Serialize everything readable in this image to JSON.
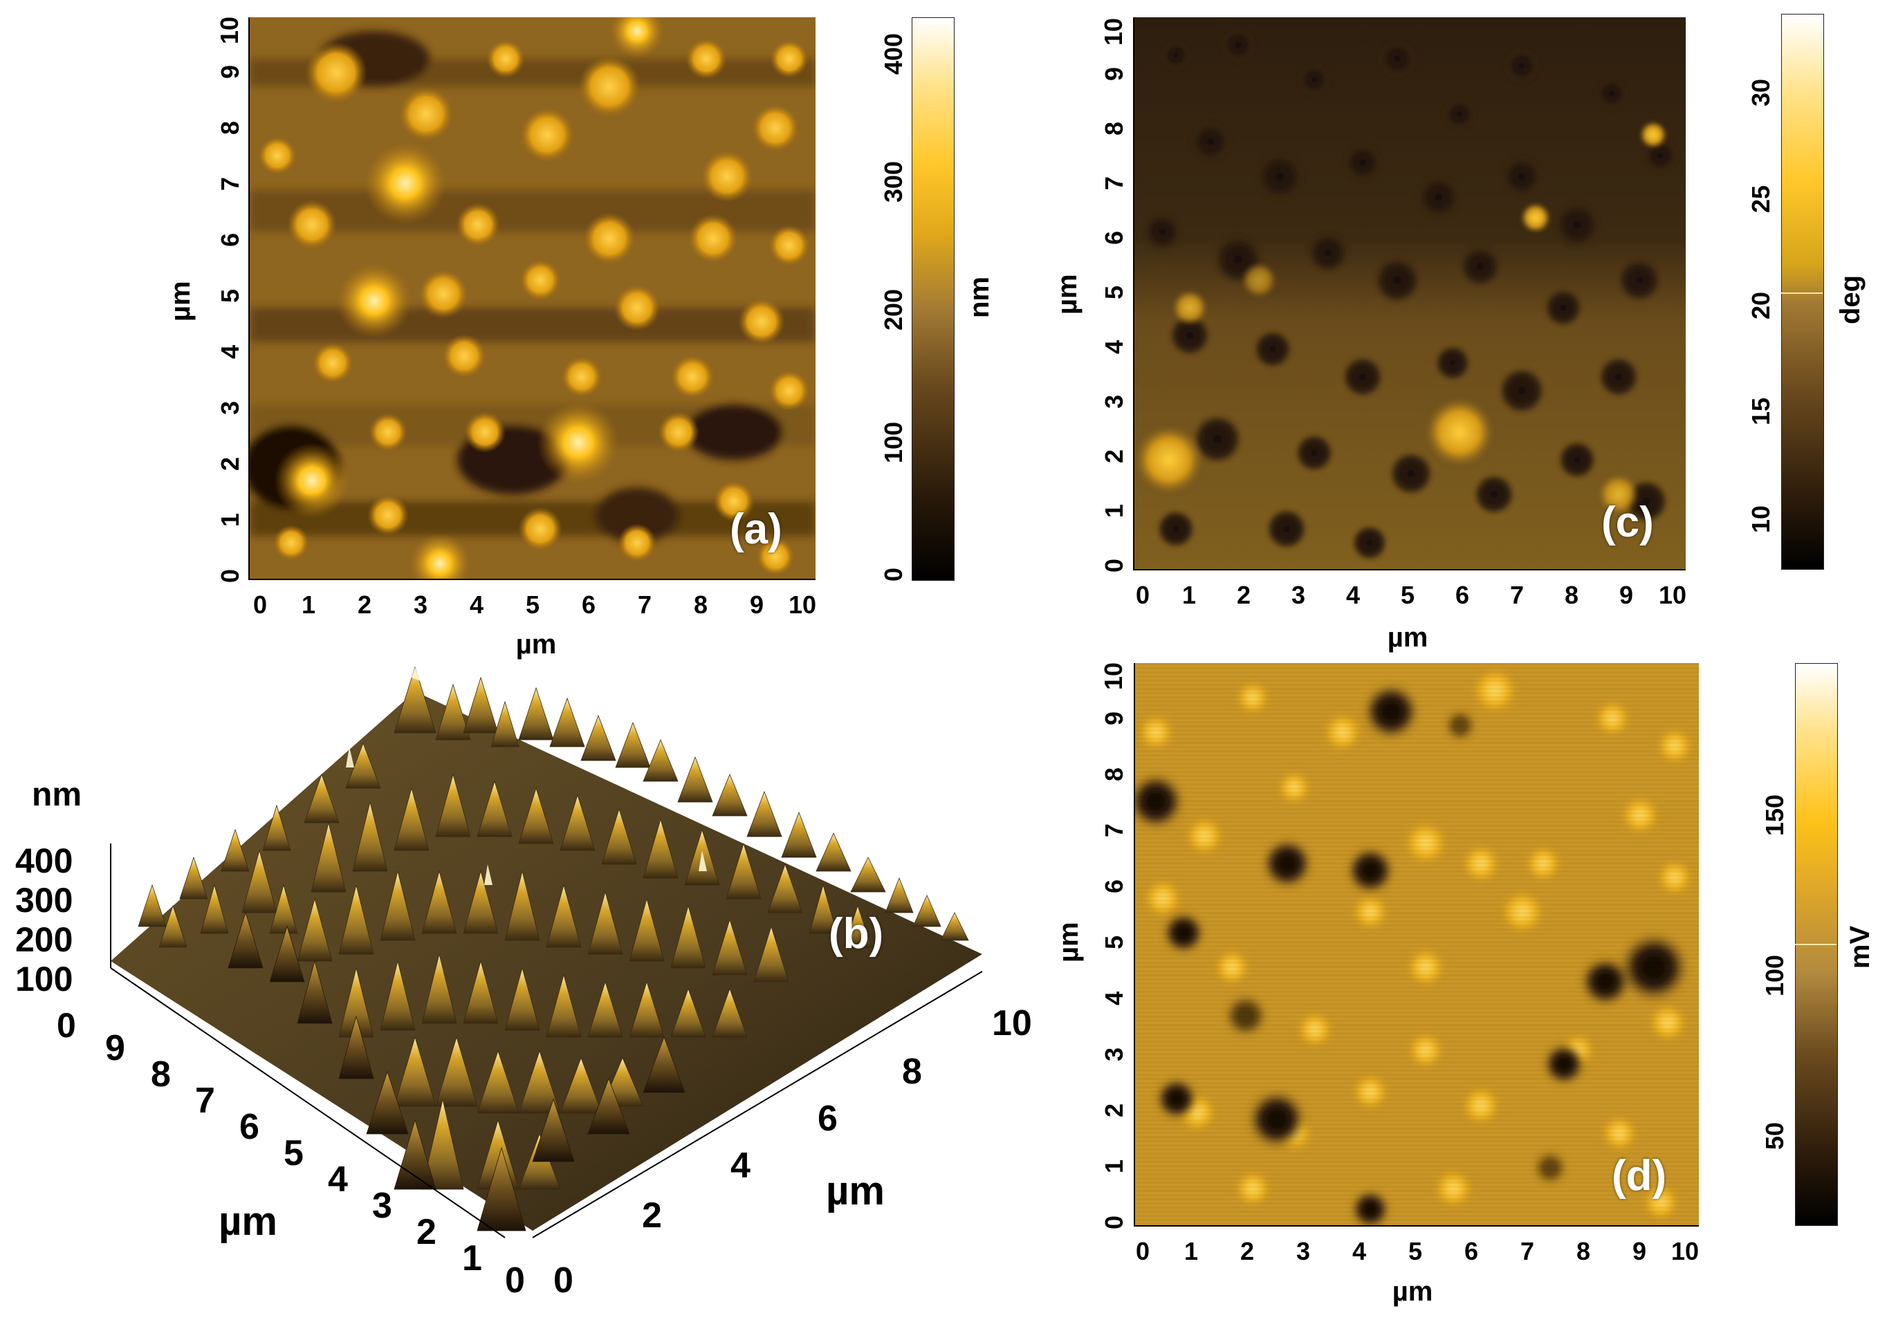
{
  "panel_a": {
    "tag": "(a)",
    "x_label": "µm",
    "y_label": "µm",
    "x_ticks": [
      "0",
      "1",
      "2",
      "3",
      "4",
      "5",
      "6",
      "7",
      "8",
      "9",
      "10"
    ],
    "y_ticks": [
      "0",
      "1",
      "2",
      "3",
      "4",
      "5",
      "6",
      "7",
      "8",
      "9",
      "10"
    ],
    "colorbar": {
      "unit": "nm",
      "ticks": [
        "0",
        "100",
        "200",
        "300",
        "400"
      ],
      "min": 0,
      "max": 420
    }
  },
  "panel_b": {
    "tag": "(b)",
    "z_unit": "nm",
    "z_ticks": [
      "400",
      "300",
      "200",
      "100",
      "0"
    ],
    "left_ticks": [
      "9",
      "8",
      "7",
      "6",
      "5",
      "4",
      "3",
      "2",
      "1",
      "0"
    ],
    "right_ticks": [
      "0",
      "2",
      "4",
      "6",
      "8",
      "10"
    ],
    "left_axis_label": "µm",
    "right_axis_label": "µm"
  },
  "panel_c": {
    "tag": "(c)",
    "x_label": "µm",
    "y_label": "µm",
    "x_ticks": [
      "0",
      "1",
      "2",
      "3",
      "4",
      "5",
      "6",
      "7",
      "8",
      "9",
      "10"
    ],
    "y_ticks": [
      "0",
      "1",
      "2",
      "3",
      "4",
      "5",
      "6",
      "7",
      "8",
      "9",
      "10"
    ],
    "colorbar": {
      "unit": "deg",
      "ticks": [
        "10",
        "15",
        "20",
        "25",
        "30"
      ],
      "min": 7.5,
      "max": 33.5
    }
  },
  "panel_d": {
    "tag": "(d)",
    "x_label": "µm",
    "y_label": "µm",
    "x_ticks": [
      "0",
      "1",
      "2",
      "3",
      "4",
      "5",
      "6",
      "7",
      "8",
      "9",
      "10"
    ],
    "y_ticks": [
      "0",
      "1",
      "2",
      "3",
      "4",
      "5",
      "6",
      "7",
      "8",
      "9",
      "10"
    ],
    "colorbar": {
      "unit": "mV",
      "ticks": [
        "50",
        "100",
        "150"
      ],
      "min": 22,
      "max": 197
    }
  },
  "colors": {
    "dark": "#1a0e06",
    "mid": "#8a6424",
    "gold": "#e6a510",
    "bright": "#ffd24a",
    "white": "#fffbe6"
  }
}
